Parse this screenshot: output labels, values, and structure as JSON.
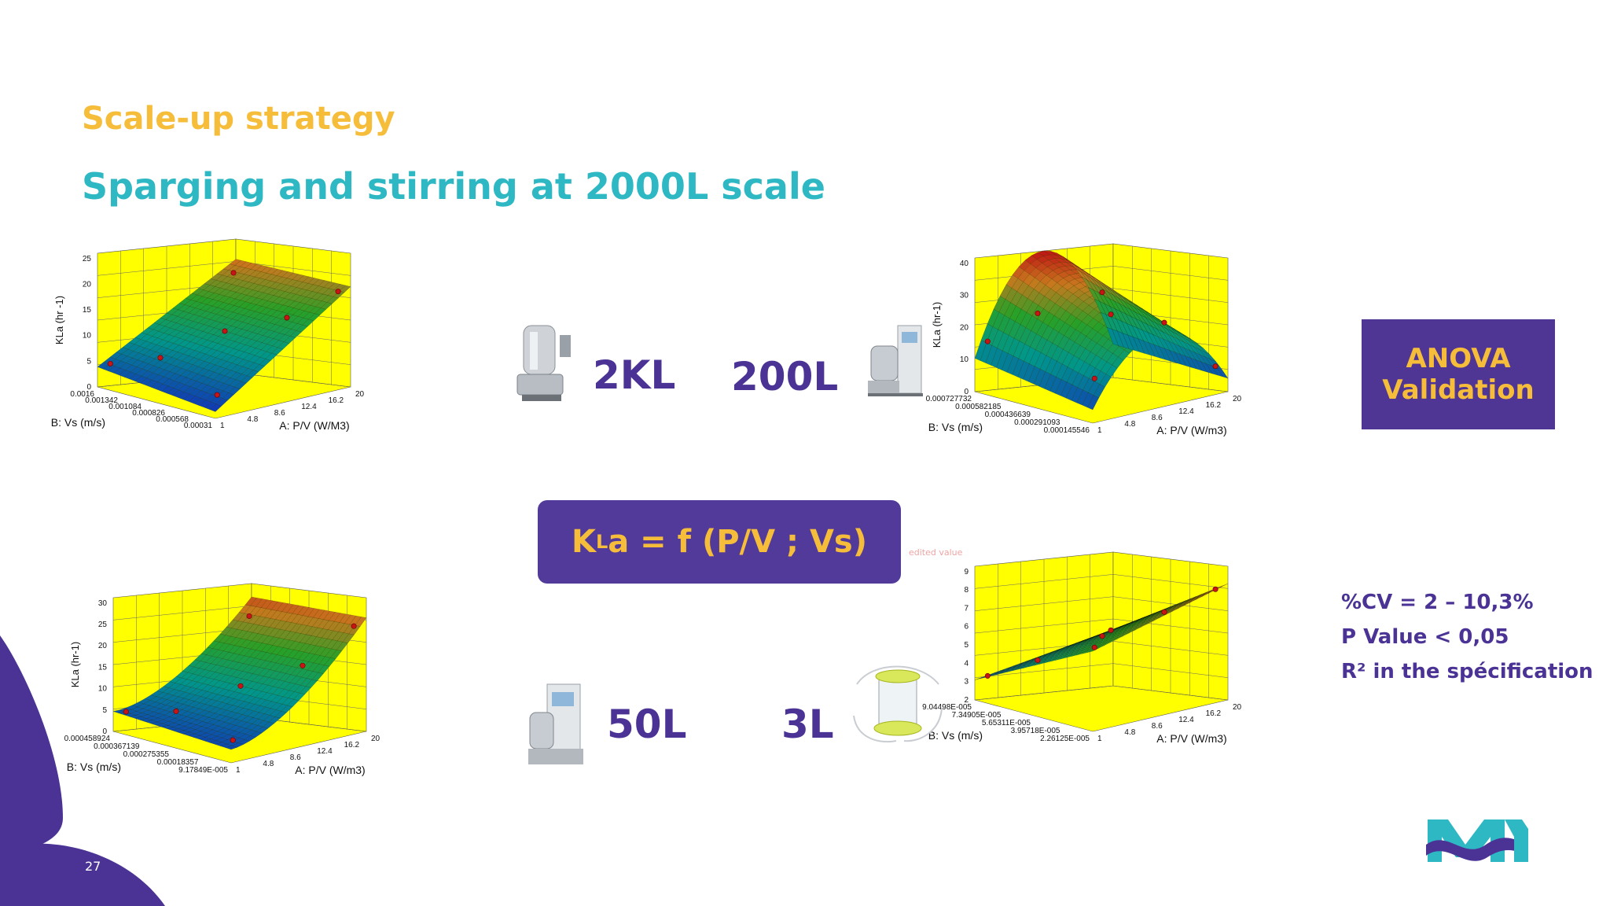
{
  "header": {
    "kicker": "Scale-up strategy",
    "title": "Sparging and stirring at 2000L scale"
  },
  "scales": {
    "s2kl": "2KL",
    "s200l": "200L",
    "s50l": "50L",
    "s3l": "3L"
  },
  "formula": {
    "k": "K",
    "sub": "L",
    "rest": "a = f (P/V ; Vs)"
  },
  "anova": {
    "line1": "ANOVA",
    "line2": "Validation"
  },
  "stats": [
    "%CV = 2 – 10,3%",
    "P Value < 0,05",
    "R² in the spécification"
  ],
  "ghost_text": "edited value",
  "page_number": "27",
  "colors": {
    "purple": "#4a3395",
    "yellow": "#f6bd3a",
    "teal": "#2eb8c4",
    "plot_wall": "#ffff00"
  },
  "icons": [
    "bioreactor-2kl-icon",
    "bioreactor-200l-icon",
    "bioreactor-50l-icon",
    "single-use-bag-3l-icon",
    "merck-logo-icon"
  ],
  "plots": [
    {
      "id": "tl",
      "zlabel": "KLa (hr -1)",
      "zticks": [
        "25",
        "20",
        "15",
        "10",
        "5",
        "0"
      ],
      "blabel": "B: Vs (m/s)",
      "bticks": [
        "0.0016",
        "0.001342",
        "0.001084",
        "0.000826",
        "0.000568",
        "0.00031"
      ],
      "alabel": "A: P/V (W/M3)",
      "aticks": [
        "1",
        "4.8",
        "8.6",
        "12.4",
        "16.2",
        "20"
      ]
    },
    {
      "id": "tr",
      "zlabel": "KLa (hr-1)",
      "zticks": [
        "40",
        "30",
        "20",
        "10",
        "0"
      ],
      "blabel": "B: Vs (m/s)",
      "bticks": [
        "0.000727732",
        "0.000582185",
        "0.000436639",
        "0.000291093",
        "0.000145546"
      ],
      "alabel": "A: P/V (W/m3)",
      "aticks": [
        "1",
        "4.8",
        "8.6",
        "12.4",
        "16.2",
        "20"
      ]
    },
    {
      "id": "bl",
      "zlabel": "KLa (hr-1)",
      "zticks": [
        "30",
        "25",
        "20",
        "15",
        "10",
        "5",
        "0"
      ],
      "blabel": "B: Vs (m/s)",
      "bticks": [
        "0.000458924",
        "0.000367139",
        "0.000275355",
        "0.00018357",
        "9.17849E-005"
      ],
      "alabel": "A: P/V (W/m3)",
      "aticks": [
        "1",
        "4.8",
        "8.6",
        "12.4",
        "16.2",
        "20"
      ]
    },
    {
      "id": "br",
      "zlabel": "",
      "zticks": [
        "9",
        "8",
        "7",
        "6",
        "5",
        "4",
        "3",
        "2"
      ],
      "blabel": "B: Vs (m/s)",
      "bticks": [
        "9.04498E-005",
        "7.34905E-005",
        "5.65311E-005",
        "3.95718E-005",
        "2.26125E-005"
      ],
      "alabel": "A: P/V (W/m3)",
      "aticks": [
        "1",
        "4.8",
        "8.6",
        "12.4",
        "16.2",
        "20"
      ]
    }
  ]
}
